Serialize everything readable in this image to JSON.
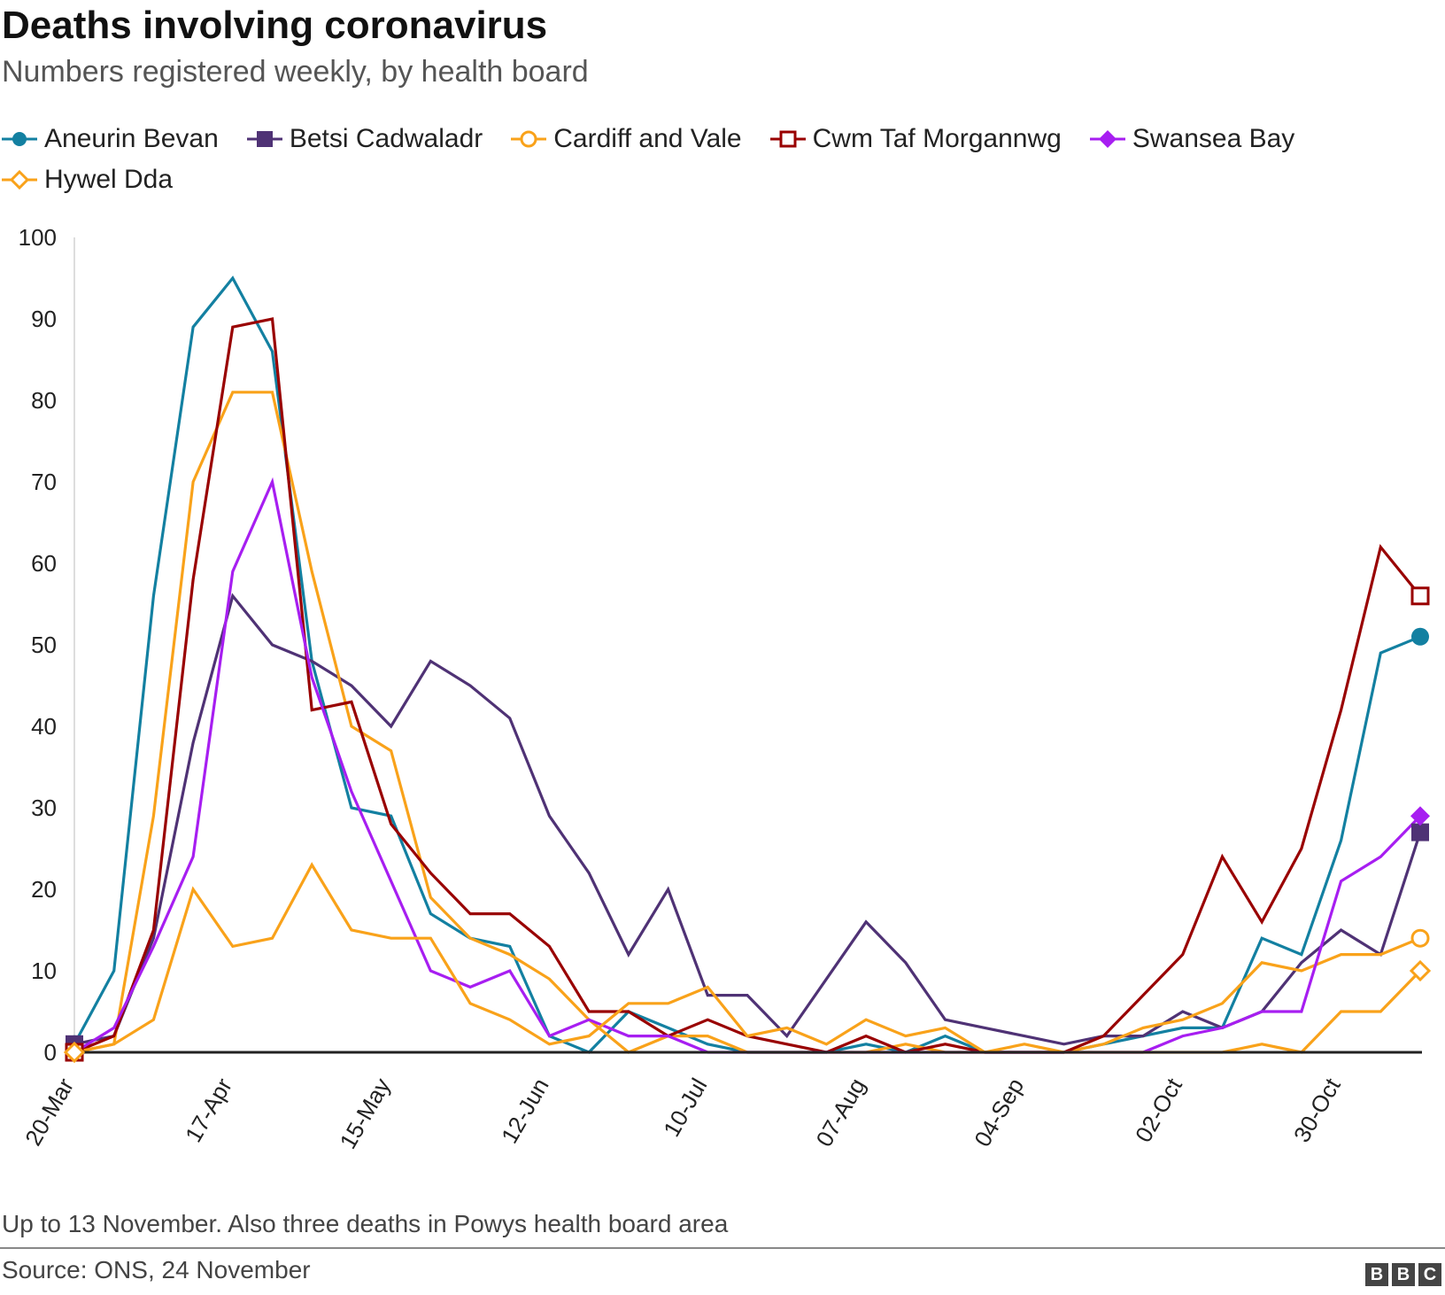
{
  "header": {
    "title": "Deaths involving coronavirus",
    "subtitle": "Numbers registered weekly, by health board"
  },
  "footer": {
    "note": "Up to 13 November. Also three deaths in Powys health board area",
    "source": "Source: ONS, 24 November",
    "logo_letters": [
      "B",
      "B",
      "C"
    ]
  },
  "chart_data": {
    "type": "line",
    "title": "Deaths involving coronavirus",
    "subtitle": "Numbers registered weekly, by health board",
    "xlabel": "",
    "ylabel": "",
    "ylim": [
      0,
      100
    ],
    "yticks": [
      0,
      10,
      20,
      30,
      40,
      50,
      60,
      70,
      80,
      90,
      100
    ],
    "x": [
      "20-Mar",
      "27-Mar",
      "03-Apr",
      "10-Apr",
      "17-Apr",
      "24-Apr",
      "01-May",
      "08-May",
      "15-May",
      "22-May",
      "29-May",
      "05-Jun",
      "12-Jun",
      "19-Jun",
      "26-Jun",
      "03-Jul",
      "10-Jul",
      "17-Jul",
      "24-Jul",
      "31-Jul",
      "07-Aug",
      "14-Aug",
      "21-Aug",
      "28-Aug",
      "04-Sep",
      "11-Sep",
      "18-Sep",
      "25-Sep",
      "02-Oct",
      "09-Oct",
      "16-Oct",
      "23-Oct",
      "30-Oct",
      "06-Nov",
      "13-Nov"
    ],
    "xticks": [
      "20-Mar",
      "17-Apr",
      "15-May",
      "12-Jun",
      "10-Jul",
      "07-Aug",
      "04-Sep",
      "02-Oct",
      "30-Oct"
    ],
    "legend_position": "top",
    "grid": false,
    "series": [
      {
        "name": "Aneurin Bevan",
        "color": "#1380a1",
        "marker": "circle-filled",
        "values": [
          1,
          10,
          56,
          89,
          95,
          86,
          48,
          30,
          29,
          17,
          14,
          13,
          2,
          0,
          5,
          3,
          1,
          0,
          0,
          0,
          1,
          0,
          2,
          0,
          0,
          0,
          1,
          2,
          3,
          3,
          14,
          12,
          26,
          49,
          51
        ]
      },
      {
        "name": "Betsi Cadwaladr",
        "color": "#4f3275",
        "marker": "square-filled",
        "values": [
          1,
          2,
          14,
          38,
          56,
          50,
          48,
          45,
          40,
          48,
          45,
          41,
          29,
          22,
          12,
          20,
          7,
          7,
          2,
          9,
          16,
          11,
          4,
          3,
          2,
          1,
          2,
          2,
          5,
          3,
          5,
          11,
          15,
          12,
          27
        ]
      },
      {
        "name": "Cardiff and Vale",
        "color": "#f9a21a",
        "marker": "circle-open",
        "values": [
          0,
          1,
          29,
          70,
          81,
          81,
          59,
          40,
          37,
          19,
          14,
          12,
          9,
          4,
          0,
          2,
          2,
          0,
          0,
          0,
          0,
          1,
          0,
          0,
          0,
          0,
          1,
          3,
          4,
          6,
          11,
          10,
          12,
          12,
          14
        ]
      },
      {
        "name": "Cwm Taf Morgannwg",
        "color": "#990000",
        "marker": "square-open",
        "values": [
          0,
          2,
          15,
          58,
          89,
          90,
          42,
          43,
          28,
          22,
          17,
          17,
          13,
          5,
          5,
          2,
          4,
          2,
          1,
          0,
          2,
          0,
          1,
          0,
          0,
          0,
          2,
          7,
          12,
          24,
          16,
          25,
          42,
          62,
          56
        ]
      },
      {
        "name": "Swansea Bay",
        "color": "#a71ef1",
        "marker": "diamond-filled",
        "values": [
          0,
          3,
          13,
          24,
          59,
          70,
          46,
          32,
          21,
          10,
          8,
          10,
          2,
          4,
          2,
          2,
          0,
          0,
          0,
          0,
          0,
          0,
          0,
          0,
          0,
          0,
          0,
          0,
          2,
          3,
          5,
          5,
          21,
          24,
          29
        ]
      },
      {
        "name": "Hywel Dda",
        "color": "#f9a21a",
        "marker": "diamond-open",
        "values": [
          0,
          1,
          4,
          20,
          13,
          14,
          23,
          15,
          14,
          14,
          6,
          4,
          1,
          2,
          6,
          6,
          8,
          2,
          3,
          1,
          4,
          2,
          3,
          0,
          1,
          0,
          0,
          0,
          0,
          0,
          1,
          0,
          5,
          5,
          10
        ]
      }
    ]
  }
}
